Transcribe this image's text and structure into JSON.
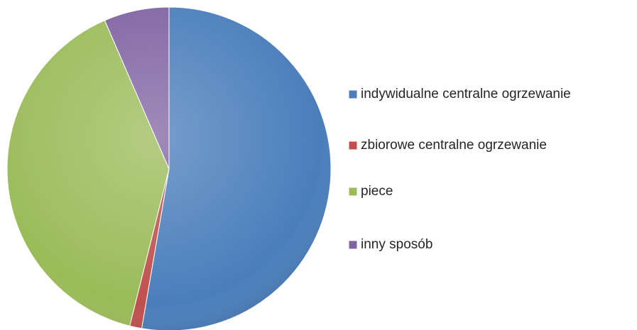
{
  "chart_data": {
    "type": "pie",
    "categories": [
      "indywidualne centralne ogrzewanie",
      "zbiorowe centralne ogrzewanie",
      "piece",
      "inny sposób"
    ],
    "values": [
      52.7,
      1.2,
      39.6,
      6.5
    ],
    "colors": [
      "#4a7ebb",
      "#c0504d",
      "#9bbb59",
      "#8064a2"
    ],
    "legend": "right"
  }
}
